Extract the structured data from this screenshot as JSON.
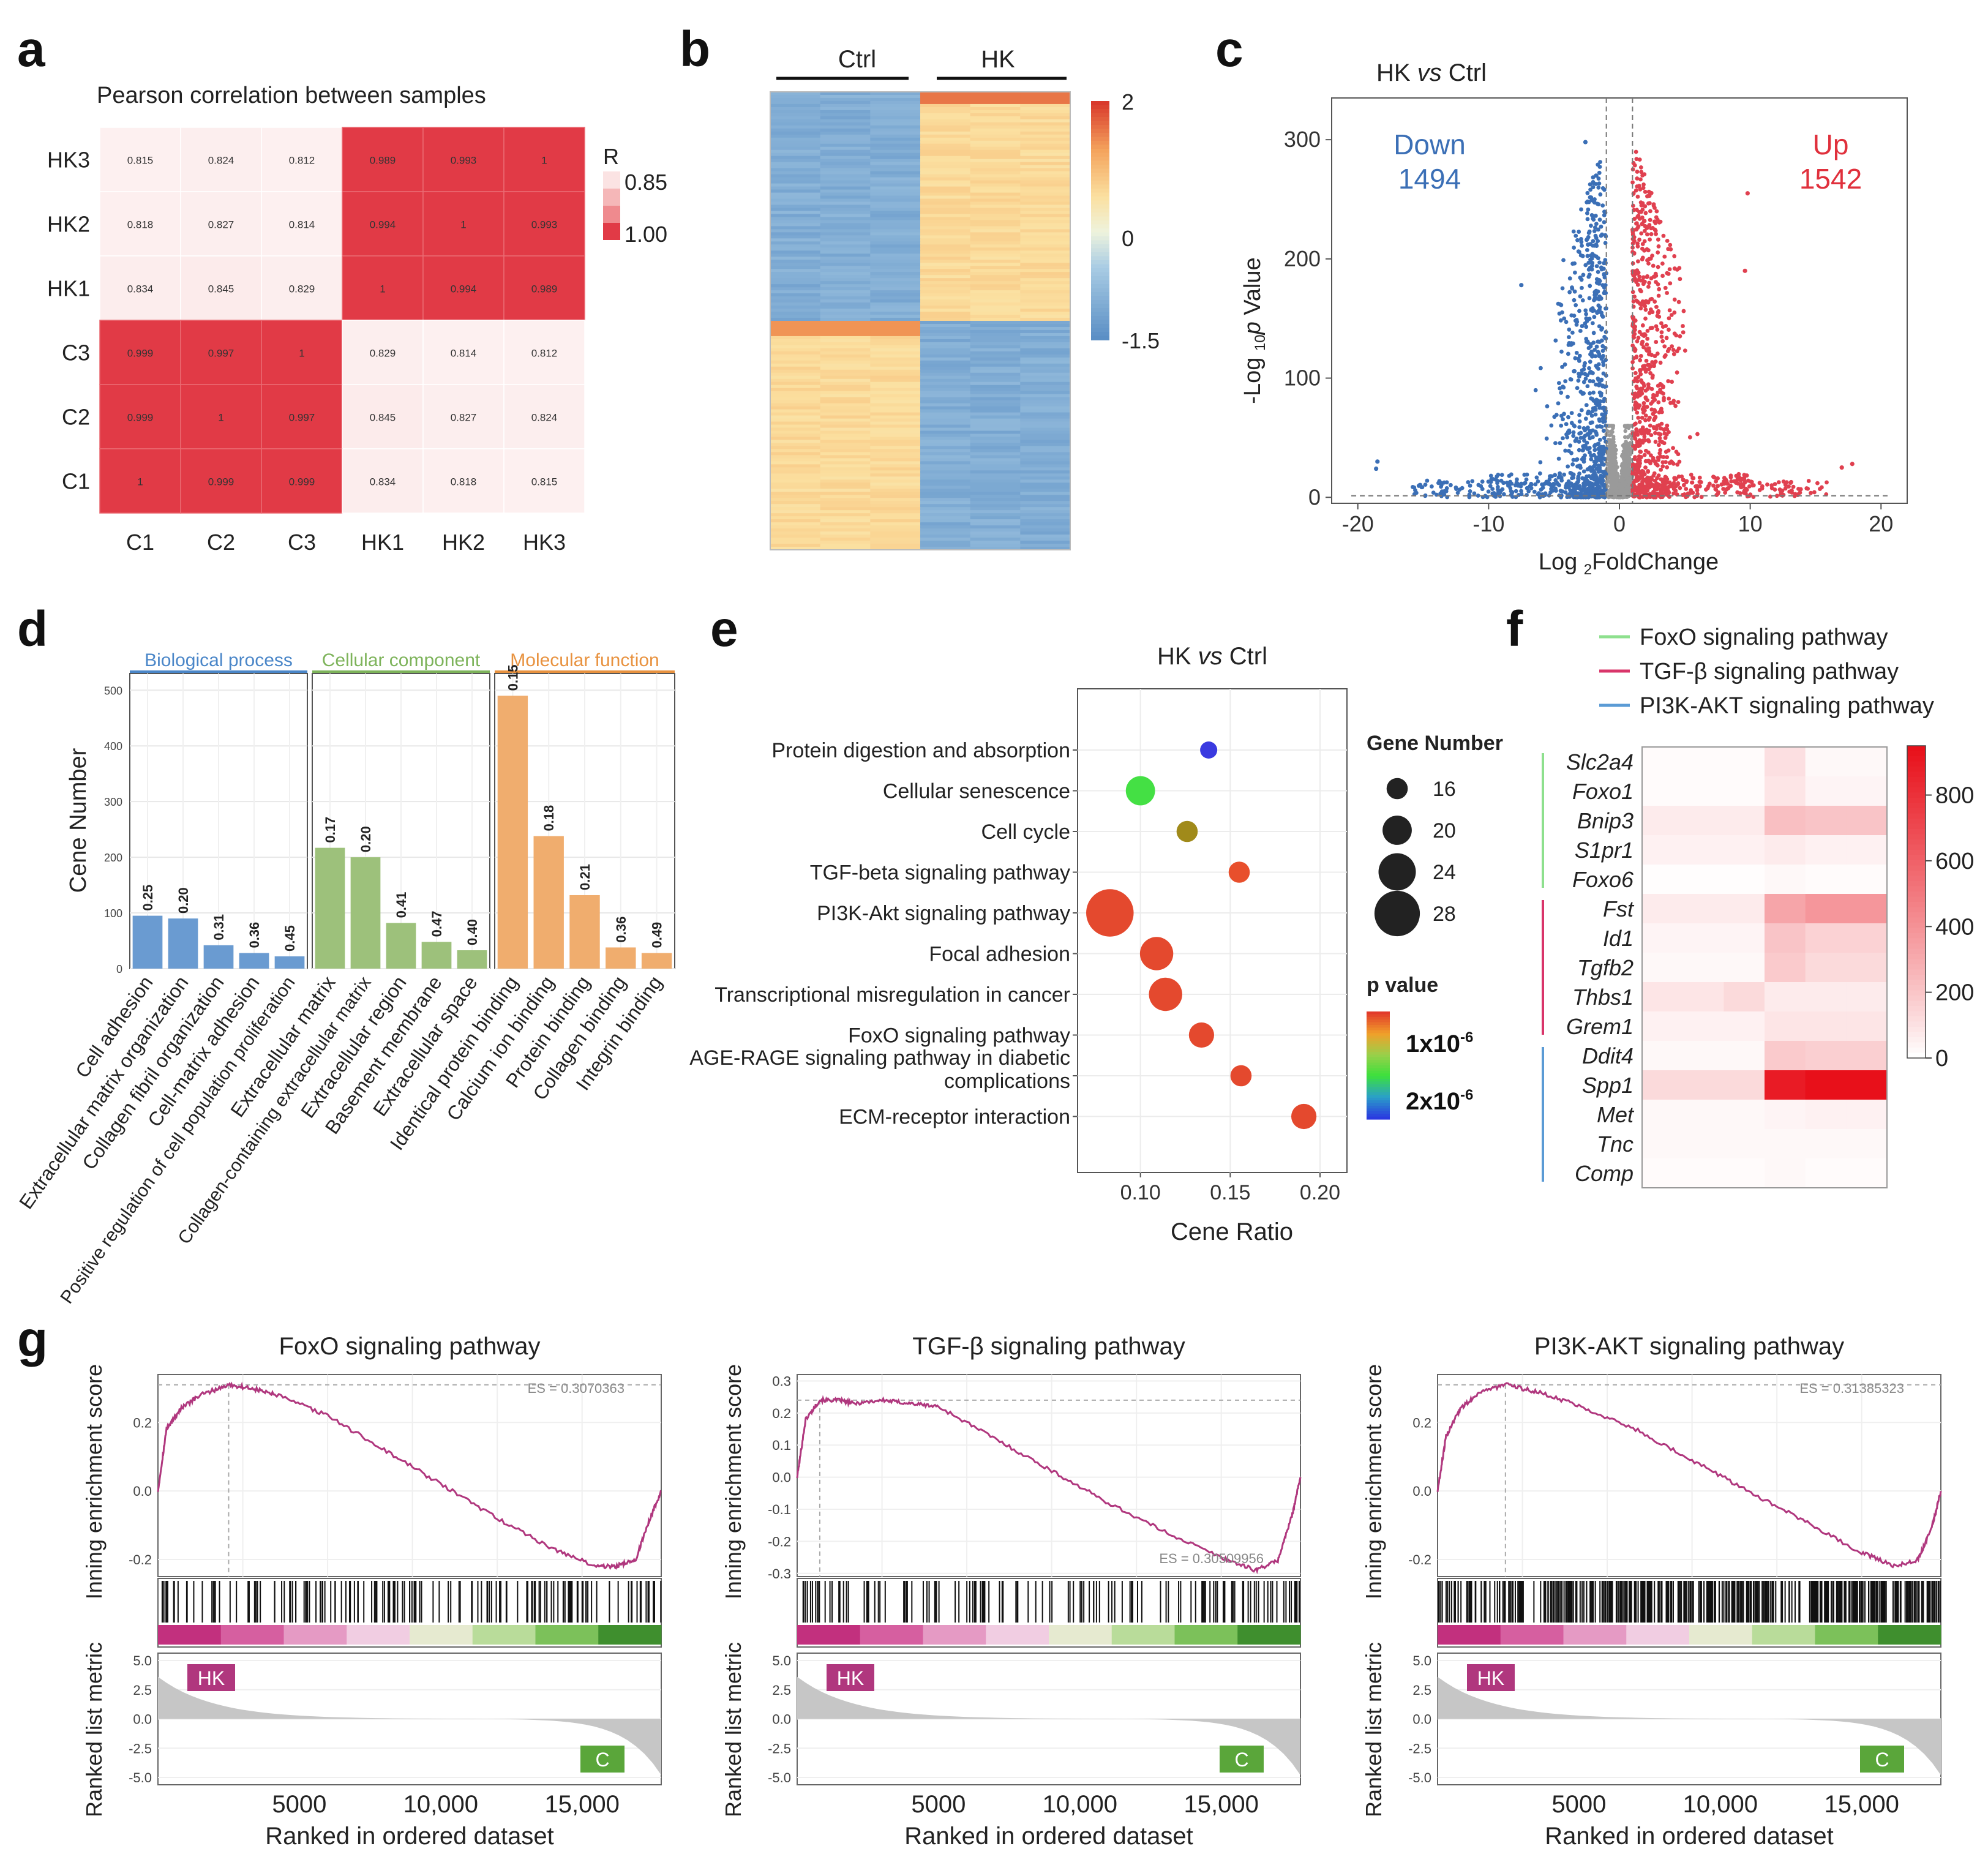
{
  "panel_letters": [
    "a",
    "b",
    "c",
    "d",
    "e",
    "f",
    "g"
  ],
  "colors": {
    "red": "#e03a44",
    "blue": "#3b6fb6",
    "green": "#7cc47b",
    "gray": "#9a9a9a",
    "magenta": "#b0377e",
    "orange": "#f0a86a"
  },
  "chart_data": [
    {
      "id": "a",
      "type": "heatmap",
      "title": "Pearson correlation between samples",
      "rows": [
        "HK3",
        "HK2",
        "HK1",
        "C3",
        "C2",
        "C1"
      ],
      "cols": [
        "C1",
        "C2",
        "C3",
        "HK1",
        "HK2",
        "HK3"
      ],
      "values": [
        [
          "0.815",
          "0.824",
          "0.812",
          "0.989",
          "0.993",
          "1"
        ],
        [
          "0.818",
          "0.827",
          "0.814",
          "0.994",
          "1",
          "0.993"
        ],
        [
          "0.834",
          "0.845",
          "0.829",
          "1",
          "0.994",
          "0.989"
        ],
        [
          "0.999",
          "0.997",
          "1",
          "0.829",
          "0.814",
          "0.812"
        ],
        [
          "0.999",
          "1",
          "0.997",
          "0.845",
          "0.827",
          "0.824"
        ],
        [
          "1",
          "0.999",
          "0.999",
          "0.834",
          "0.818",
          "0.815"
        ]
      ],
      "legend_title": "R",
      "legend_labels": [
        "0.85",
        "1.00"
      ]
    },
    {
      "id": "b",
      "type": "heatmap",
      "groups": [
        "Ctrl",
        "HK"
      ],
      "samples_per_group": 3,
      "scale_labels": [
        "2",
        "0",
        "-1.5"
      ],
      "scale_range": [
        -1.5,
        2
      ]
    },
    {
      "id": "c",
      "type": "scatter",
      "title_prefix": "HK ",
      "title_italic": "vs",
      "title_suffix": " Ctrl",
      "xlabel": "Log 2FoldChange",
      "xlabel_main": "Log ",
      "xlabel_sub": "2",
      "xlabel_tail": "FoldChange",
      "ylabel_parts": [
        "-Log ",
        "10",
        "p",
        " Value"
      ],
      "x_ticks": [
        "-20",
        "-10",
        "0",
        "10",
        "20"
      ],
      "y_ticks": [
        "0",
        "100",
        "200",
        "300"
      ],
      "xlim": [
        -22,
        22
      ],
      "ylim": [
        -5,
        335
      ],
      "down_label": "Down",
      "down_count": "1494",
      "up_label": "Up",
      "up_count": "1542",
      "fc_threshold": 1
    },
    {
      "id": "d",
      "type": "bar",
      "ylabel": "Cene Number",
      "y_ticks": [
        "0",
        "100",
        "200",
        "300",
        "400",
        "500"
      ],
      "ylim": [
        0,
        530
      ],
      "facets": [
        {
          "name": "Biological process",
          "color": "#6a9bd1",
          "header_color": "#4a86c8",
          "categories": [
            "Cell adhesion",
            "Extracellular matrix organization",
            "Collagen fibril organization",
            "Cell-matrix adhesion",
            "Positive regulation of cell population proliferation"
          ],
          "values": [
            95,
            90,
            42,
            28,
            22
          ],
          "labels": [
            "0.25",
            "0.20",
            "0.31",
            "0.36",
            "0.45"
          ]
        },
        {
          "name": "Cellular component",
          "color": "#9dc17b",
          "header_color": "#7db35a",
          "categories": [
            "Extracellular matrix",
            "Collagen-containing extracellular matrix",
            "Extracellular region",
            "Basement membrane",
            "Extracellular space"
          ],
          "values": [
            217,
            200,
            82,
            48,
            33
          ],
          "labels": [
            "0.17",
            "0.20",
            "0.41",
            "0.47",
            "0.40"
          ]
        },
        {
          "name": "Molecular function",
          "color": "#f0ad6e",
          "header_color": "#e8923f",
          "categories": [
            "Identical protein binding",
            "Calcium ion binding",
            "Protein binding",
            "Collagen binding",
            "Integrin binding"
          ],
          "values": [
            490,
            238,
            132,
            38,
            28
          ],
          "labels": [
            "0.15",
            "0.18",
            "0.21",
            "0.36",
            "0.49"
          ]
        }
      ]
    },
    {
      "id": "e",
      "type": "scatter",
      "title_prefix": "HK ",
      "title_italic": "vs",
      "title_suffix": " Ctrl",
      "xlabel": "Cene Ratio",
      "x_ticks": [
        "0.10",
        "0.15",
        "0.20"
      ],
      "xlim": [
        0.065,
        0.215
      ],
      "pathways": [
        "Protein digestion and absorption",
        "Cellular senescence",
        "Cell cycle",
        "TGF-beta signaling pathway",
        "PI3K-Akt signaling pathway",
        "Focal adhesion",
        "Transcriptional misregulation in cancer",
        "FoxO signaling pathway",
        "AGE-RAGE signaling pathway in diabetic complications",
        "ECM-receptor interaction"
      ],
      "gene_ratio": [
        0.138,
        0.1,
        0.126,
        0.155,
        0.083,
        0.109,
        0.114,
        0.134,
        0.156,
        0.191
      ],
      "gene_number": [
        14,
        20,
        16,
        16,
        29,
        22,
        22,
        18,
        16,
        18
      ],
      "pvalue_color": [
        "#3a3ae0",
        "#44e044",
        "#a08a1a",
        "#e84f2c",
        "#e4492e",
        "#e4492e",
        "#e4492e",
        "#e4492e",
        "#e4492e",
        "#e4492e"
      ],
      "size_legend_title": "Gene Number",
      "size_legend": [
        "16",
        "20",
        "24",
        "28"
      ],
      "color_legend_title": "p value",
      "color_legend": [
        "1x10",
        "-6",
        "2x10",
        "-6"
      ]
    },
    {
      "id": "f",
      "type": "heatmap",
      "legend": [
        {
          "label": "FoxO signaling pathway",
          "color": "#8ee08e"
        },
        {
          "label": "TGF-β signaling pathway",
          "color": "#d9356a"
        },
        {
          "label": "PI3K-AKT signaling pathway",
          "color": "#5b9bd5"
        }
      ],
      "genes": [
        "Slc2a4",
        "Foxo1",
        "Bnip3",
        "S1pr1",
        "Foxo6",
        "Fst",
        "Id1",
        "Tgfb2",
        "Thbs1",
        "Grem1",
        "Ddit4",
        "Spp1",
        "Met",
        "Tnc",
        "Comp"
      ],
      "values": [
        [
          10,
          10,
          10,
          100,
          20,
          20
        ],
        [
          10,
          10,
          10,
          80,
          30,
          30
        ],
        [
          60,
          60,
          60,
          220,
          200,
          200
        ],
        [
          40,
          40,
          40,
          60,
          40,
          40
        ],
        [
          5,
          5,
          5,
          20,
          10,
          10
        ],
        [
          60,
          60,
          60,
          320,
          380,
          380
        ],
        [
          30,
          30,
          30,
          200,
          150,
          150
        ],
        [
          20,
          20,
          20,
          180,
          120,
          120
        ],
        [
          80,
          80,
          120,
          60,
          60,
          60
        ],
        [
          40,
          40,
          40,
          80,
          80,
          80
        ],
        [
          20,
          20,
          20,
          180,
          160,
          160
        ],
        [
          120,
          120,
          120,
          900,
          980,
          980
        ],
        [
          20,
          20,
          20,
          30,
          40,
          40
        ],
        [
          20,
          20,
          20,
          20,
          20,
          20
        ],
        [
          10,
          10,
          10,
          20,
          10,
          10
        ]
      ],
      "scale_ticks": [
        "800",
        "600",
        "400",
        "200",
        "0"
      ],
      "scale_range": [
        0,
        950
      ]
    },
    {
      "id": "g",
      "type": "line",
      "ylabel_top": "Inning enrichment score",
      "ylabel_bottom": "Ranked list metric",
      "xlabel": "Ranked in ordered dataset",
      "x_ticks": [
        "5000",
        "10,000",
        "15,000"
      ],
      "xlim": [
        0,
        17800
      ],
      "hk_label": "HK",
      "c_label": "C",
      "metric_ticks": [
        "5.0",
        "2.5",
        "0.0",
        "-2.5",
        "-5.0"
      ],
      "plots": [
        {
          "title": "FoxO signaling pathway",
          "es_label": "ES = 0.3070363",
          "es_pos": "top-right",
          "y_ticks": [
            "0.2",
            "0.0",
            "-0.2"
          ],
          "ylim": [
            -0.25,
            0.34
          ],
          "x": [
            0,
            300,
            800,
            1500,
            2500,
            3300,
            4200,
            6000,
            8000,
            10000,
            12000,
            14000,
            15500,
            16200,
            16900,
            17400,
            17800
          ],
          "es": [
            0,
            0.18,
            0.24,
            0.28,
            0.31,
            0.3,
            0.28,
            0.22,
            0.12,
            0.02,
            -0.08,
            -0.17,
            -0.22,
            -0.22,
            -0.2,
            -0.08,
            0.0
          ]
        },
        {
          "title": "TGF-β signaling pathway",
          "es_label": "ES = 0.30509956",
          "es_pos": "bottom-right",
          "y_ticks": [
            "0.3",
            "0.2",
            "0.1",
            "0.0",
            "-0.1",
            "-0.2",
            "-0.3"
          ],
          "ylim": [
            -0.31,
            0.32
          ],
          "x": [
            0,
            300,
            800,
            1500,
            2000,
            3000,
            4000,
            5000,
            7000,
            9000,
            11000,
            13000,
            15000,
            16200,
            17000,
            17500,
            17800
          ],
          "es": [
            0,
            0.18,
            0.24,
            0.24,
            0.23,
            0.24,
            0.23,
            0.22,
            0.12,
            0.02,
            -0.08,
            -0.17,
            -0.25,
            -0.29,
            -0.26,
            -0.12,
            0.0
          ]
        },
        {
          "title": "PI3K-AKT signaling pathway",
          "es_label": "ES = 0.31385323",
          "es_pos": "top-right",
          "y_ticks": [
            "0.2",
            "0.0",
            "-0.2"
          ],
          "ylim": [
            -0.25,
            0.34
          ],
          "x": [
            0,
            300,
            800,
            1500,
            2400,
            3500,
            5000,
            7000,
            9000,
            11000,
            13000,
            15000,
            16200,
            17000,
            17500,
            17800
          ],
          "es": [
            0,
            0.16,
            0.24,
            0.29,
            0.31,
            0.29,
            0.25,
            0.18,
            0.09,
            0.0,
            -0.09,
            -0.18,
            -0.22,
            -0.2,
            -0.1,
            0.0
          ]
        }
      ]
    }
  ]
}
